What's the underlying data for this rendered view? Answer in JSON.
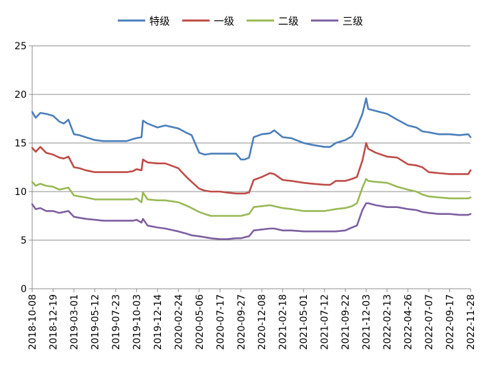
{
  "chart_data": {
    "type": "line",
    "title": "",
    "xlabel": "",
    "ylabel": "",
    "ylim": [
      0,
      25
    ],
    "yticks": [
      0,
      5,
      10,
      15,
      20,
      25
    ],
    "grid": "horizontal",
    "legend": "top",
    "x_tick_labels": [
      "2018-10-08",
      "2018-12-19",
      "2019-03-01",
      "2019-05-12",
      "2019-07-23",
      "2019-10-03",
      "2019-12-14",
      "2020-02-24",
      "2020-05-06",
      "2020-07-17",
      "2020-09-27",
      "2020-12-08",
      "2021-02-18",
      "2021-05-01",
      "2021-07-12",
      "2021-09-22",
      "2021-12-03",
      "2022-02-13",
      "2022-04-26",
      "2022-07-07",
      "2022-09-17",
      "2022-11-28"
    ],
    "x": [
      "2018-10-08",
      "2018-10-20",
      "2018-11-05",
      "2018-11-25",
      "2018-12-19",
      "2019-01-10",
      "2019-01-25",
      "2019-02-10",
      "2019-03-01",
      "2019-03-20",
      "2019-04-10",
      "2019-05-12",
      "2019-06-10",
      "2019-07-23",
      "2019-08-30",
      "2019-09-20",
      "2019-10-03",
      "2019-10-20",
      "2019-10-25",
      "2019-11-10",
      "2019-12-14",
      "2020-01-10",
      "2020-02-24",
      "2020-03-20",
      "2020-04-10",
      "2020-05-06",
      "2020-05-25",
      "2020-06-15",
      "2020-07-17",
      "2020-08-10",
      "2020-09-10",
      "2020-09-27",
      "2020-10-10",
      "2020-10-25",
      "2020-11-10",
      "2020-12-08",
      "2021-01-05",
      "2021-01-20",
      "2021-02-18",
      "2021-03-20",
      "2021-05-01",
      "2021-06-01",
      "2021-07-12",
      "2021-08-01",
      "2021-08-20",
      "2021-09-22",
      "2021-10-15",
      "2021-11-01",
      "2021-11-20",
      "2021-12-03",
      "2021-12-10",
      "2022-01-05",
      "2022-02-13",
      "2022-03-20",
      "2022-04-26",
      "2022-05-25",
      "2022-06-15",
      "2022-07-07",
      "2022-08-10",
      "2022-09-17",
      "2022-10-20",
      "2022-11-20",
      "2022-11-28"
    ],
    "series": [
      {
        "name": "特级",
        "color": "#4a7ebb",
        "values": [
          18.2,
          17.6,
          18.1,
          18.0,
          17.8,
          17.2,
          17.0,
          17.4,
          15.9,
          15.8,
          15.6,
          15.3,
          15.2,
          15.2,
          15.2,
          15.4,
          15.5,
          15.6,
          17.3,
          17.0,
          16.6,
          16.8,
          16.5,
          16.1,
          15.8,
          14.0,
          13.8,
          13.9,
          13.9,
          13.9,
          13.9,
          13.3,
          13.3,
          13.5,
          15.6,
          15.9,
          16.0,
          16.3,
          15.6,
          15.5,
          15.0,
          14.8,
          14.6,
          14.6,
          15.0,
          15.3,
          15.7,
          16.6,
          18.0,
          19.6,
          18.5,
          18.3,
          18.0,
          17.4,
          16.8,
          16.6,
          16.2,
          16.1,
          15.9,
          15.9,
          15.8,
          15.9,
          15.6
        ]
      },
      {
        "name": "一级",
        "color": "#be4b48",
        "values": [
          14.5,
          14.1,
          14.6,
          14.0,
          13.8,
          13.5,
          13.4,
          13.6,
          12.5,
          12.4,
          12.2,
          12.0,
          12.0,
          12.0,
          12.0,
          12.1,
          12.3,
          12.2,
          13.3,
          13.0,
          12.9,
          12.9,
          12.4,
          11.6,
          11.0,
          10.3,
          10.1,
          10.0,
          10.0,
          9.9,
          9.8,
          9.8,
          9.8,
          9.9,
          11.2,
          11.5,
          11.9,
          11.8,
          11.2,
          11.1,
          10.9,
          10.8,
          10.7,
          10.7,
          11.1,
          11.1,
          11.3,
          11.5,
          13.2,
          15.0,
          14.4,
          14.0,
          13.6,
          13.5,
          12.8,
          12.7,
          12.5,
          12.0,
          11.9,
          11.8,
          11.8,
          11.8,
          12.2
        ]
      },
      {
        "name": "二级",
        "color": "#98b954",
        "values": [
          11.0,
          10.6,
          10.8,
          10.6,
          10.5,
          10.2,
          10.3,
          10.4,
          9.6,
          9.5,
          9.4,
          9.2,
          9.2,
          9.2,
          9.2,
          9.2,
          9.3,
          8.9,
          9.9,
          9.2,
          9.1,
          9.1,
          8.9,
          8.6,
          8.3,
          7.9,
          7.7,
          7.5,
          7.5,
          7.5,
          7.5,
          7.5,
          7.6,
          7.7,
          8.4,
          8.5,
          8.6,
          8.5,
          8.3,
          8.2,
          8.0,
          8.0,
          8.0,
          8.1,
          8.2,
          8.3,
          8.5,
          8.8,
          10.4,
          11.3,
          11.1,
          11.0,
          10.9,
          10.5,
          10.2,
          10.0,
          9.7,
          9.5,
          9.4,
          9.3,
          9.3,
          9.3,
          9.4
        ]
      },
      {
        "name": "三级",
        "color": "#7d5fa0",
        "values": [
          8.7,
          8.2,
          8.3,
          8.0,
          8.0,
          7.8,
          7.9,
          8.0,
          7.4,
          7.3,
          7.2,
          7.1,
          7.0,
          7.0,
          7.0,
          7.0,
          7.1,
          6.8,
          7.2,
          6.5,
          6.3,
          6.2,
          5.9,
          5.7,
          5.5,
          5.4,
          5.3,
          5.2,
          5.1,
          5.1,
          5.2,
          5.2,
          5.3,
          5.4,
          6.0,
          6.1,
          6.2,
          6.2,
          6.0,
          6.0,
          5.9,
          5.9,
          5.9,
          5.9,
          5.9,
          6.0,
          6.3,
          6.5,
          8.1,
          8.8,
          8.8,
          8.6,
          8.4,
          8.4,
          8.2,
          8.1,
          7.9,
          7.8,
          7.7,
          7.7,
          7.6,
          7.6,
          7.7
        ]
      }
    ]
  }
}
